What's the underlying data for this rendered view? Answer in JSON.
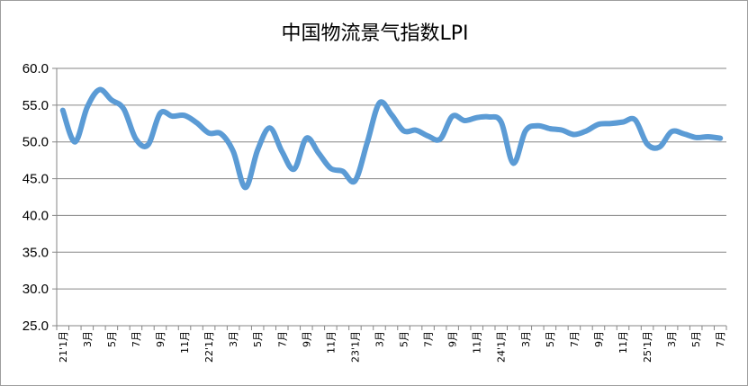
{
  "chart_data": {
    "type": "line",
    "title": "中国物流景气指数LPI",
    "xlabel": "",
    "ylabel": "",
    "ylim": [
      25.0,
      60.0
    ],
    "yticks": [
      "25.0",
      "30.0",
      "35.0",
      "40.0",
      "45.0",
      "50.0",
      "55.0",
      "60.0"
    ],
    "grid": true,
    "legend": "none",
    "line_color": "#5B9BD5",
    "x": [
      "21'1月",
      "2月",
      "3月",
      "4月",
      "5月",
      "6月",
      "7月",
      "8月",
      "9月",
      "10月",
      "11月",
      "12月",
      "22'1月",
      "2月",
      "3月",
      "4月",
      "5月",
      "6月",
      "7月",
      "8月",
      "9月",
      "10月",
      "11月",
      "12月",
      "23'1月",
      "2月",
      "3月",
      "4月",
      "5月",
      "6月",
      "7月",
      "8月",
      "9月",
      "10月",
      "11月",
      "12月",
      "24'1月",
      "2月",
      "3月",
      "4月",
      "5月",
      "6月",
      "7月",
      "8月",
      "9月",
      "10月",
      "11月",
      "12月",
      "25'1月",
      "2月",
      "3月",
      "4月",
      "5月",
      "6月",
      "7月"
    ],
    "xtick_labels": [
      "21'1月",
      "",
      "3月",
      "",
      "5月",
      "",
      "7月",
      "",
      "9月",
      "",
      "11月",
      "",
      "22'1月",
      "",
      "3月",
      "",
      "5月",
      "",
      "7月",
      "",
      "9月",
      "",
      "11月",
      "",
      "23'1月",
      "",
      "3月",
      "",
      "5月",
      "",
      "7月",
      "",
      "9月",
      "",
      "11月",
      "",
      "24'1月",
      "",
      "3月",
      "",
      "5月",
      "",
      "7月",
      "",
      "9月",
      "",
      "11月",
      "",
      "25'1月",
      "",
      "3月",
      "",
      "5月",
      "",
      "7月"
    ],
    "series": [
      {
        "values": [
          54.3,
          50.0,
          54.7,
          57.1,
          55.7,
          54.5,
          50.4,
          49.6,
          53.9,
          53.5,
          53.6,
          52.6,
          51.2,
          51.1,
          48.7,
          43.8,
          48.9,
          51.9,
          48.7,
          46.3,
          50.5,
          48.5,
          46.4,
          46.0,
          44.7,
          49.9,
          55.3,
          53.7,
          51.5,
          51.6,
          50.8,
          50.4,
          53.5,
          52.9,
          53.3,
          53.4,
          52.7,
          47.1,
          51.5,
          52.2,
          51.8,
          51.6,
          51.0,
          51.5,
          52.4,
          52.5,
          52.7,
          53.0,
          49.7,
          49.3,
          51.4,
          51.1,
          50.6,
          50.7,
          50.5
        ]
      }
    ]
  }
}
